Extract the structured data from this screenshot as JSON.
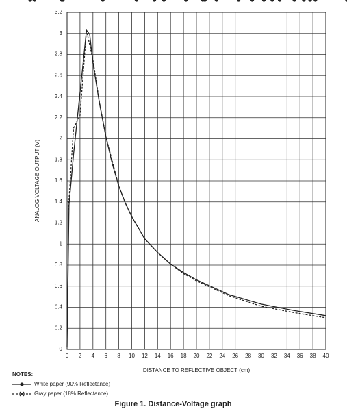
{
  "chart_data": {
    "type": "line",
    "xlabel": "DISTANCE TO REFLECTIVE OBJECT (cm)",
    "ylabel": "ANALOG VOLTAGE OUTPUT (V)",
    "title": "Figure 1. Distance-Voltage graph",
    "notes_title": "NOTES:",
    "xlim": [
      0,
      40
    ],
    "xticks": [
      0,
      2,
      4,
      6,
      8,
      10,
      12,
      14,
      16,
      18,
      20,
      22,
      24,
      26,
      28,
      30,
      32,
      34,
      36,
      38,
      40
    ],
    "ylim": [
      0,
      3.2
    ],
    "yticks": [
      0,
      0.2,
      0.4,
      0.6,
      0.8,
      1,
      1.2,
      1.4,
      1.6,
      1.8,
      2,
      2.2,
      2.4,
      2.6,
      2.8,
      3,
      3.2
    ],
    "grid": true,
    "series": [
      {
        "name": "White paper (90% Reflectance)",
        "color": "#222222",
        "marker": "circle",
        "dashed": false,
        "x": [
          0,
          0.3,
          1,
          2.5,
          3,
          3.5,
          4,
          5,
          6,
          7,
          8,
          9,
          10,
          12,
          14,
          16,
          18,
          20,
          25,
          30,
          35,
          40
        ],
        "values": [
          0.02,
          1.37,
          1.85,
          2.73,
          3.03,
          2.99,
          2.72,
          2.34,
          2.02,
          1.76,
          1.55,
          1.39,
          1.26,
          1.05,
          0.92,
          0.81,
          0.73,
          0.66,
          0.52,
          0.43,
          0.37,
          0.32
        ]
      },
      {
        "name": "Gray paper (18% Reflectance)",
        "color": "#222222",
        "marker": "x",
        "dashed": true,
        "x": [
          0.2,
          1,
          2,
          3,
          4,
          5,
          6,
          8,
          9,
          10,
          12,
          14,
          16,
          18,
          20,
          25,
          30,
          35,
          40
        ],
        "values": [
          1.32,
          2.1,
          2.22,
          3.03,
          2.75,
          2.35,
          2.02,
          1.55,
          1.39,
          1.26,
          1.05,
          0.92,
          0.81,
          0.72,
          0.65,
          0.51,
          0.41,
          0.35,
          0.3
        ]
      }
    ]
  }
}
